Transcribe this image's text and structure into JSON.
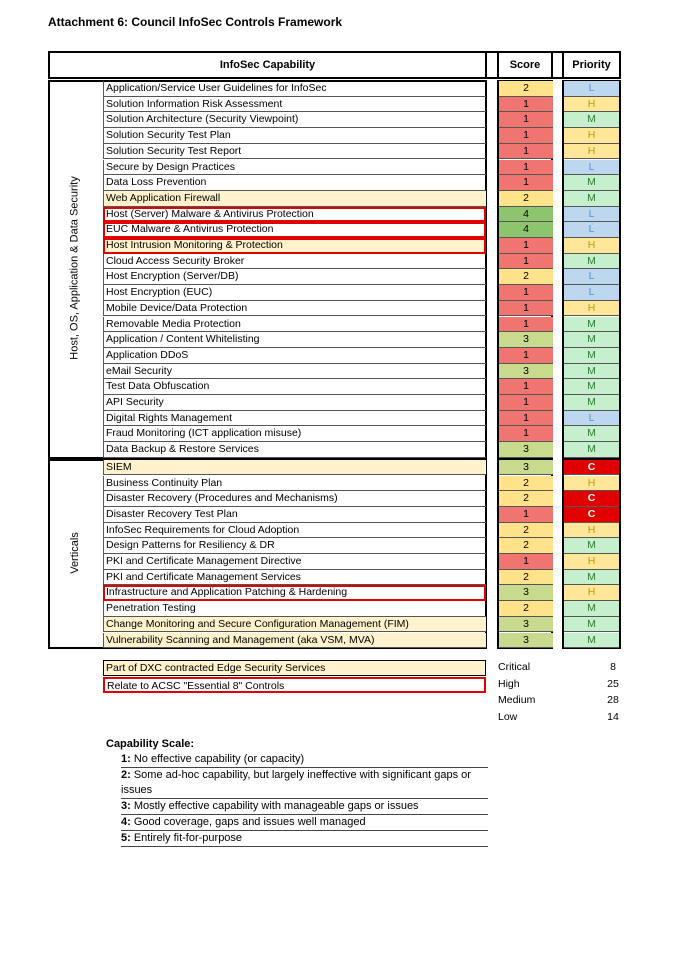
{
  "title": "Attachment 6:   Council InfoSec Controls Framework",
  "headers": {
    "capability": "InfoSec Capability",
    "score": "Score",
    "priority": "Priority"
  },
  "colors": {
    "score_1": "#f07470",
    "score_2": "#ffe28a",
    "score_3": "#c8da8e",
    "score_4": "#8dc56e",
    "prio_L_bg": "#bdd7ee",
    "prio_L_fg": "#5b8fd0",
    "prio_H_bg": "#ffe699",
    "prio_H_fg": "#c49a00",
    "prio_M_bg": "#c6efce",
    "prio_M_fg": "#2e7d32",
    "prio_C_bg": "#e00000",
    "prio_C_fg": "#ffffff",
    "edge_highlight": "#fff2cc",
    "essential8_border": "#e00000"
  },
  "sections": [
    {
      "label": "Host, OS, Application & Data Security",
      "rows": [
        {
          "name": "Application/Service User Guidelines for InfoSec",
          "score": "2",
          "priority": "L"
        },
        {
          "name": "Solution Information Risk Assessment",
          "score": "1",
          "priority": "H"
        },
        {
          "name": "Solution Architecture (Security Viewpoint)",
          "score": "1",
          "priority": "M"
        },
        {
          "name": "Solution Security Test Plan",
          "score": "1",
          "priority": "H"
        },
        {
          "name": "Solution Security Test Report",
          "score": "1",
          "priority": "H"
        },
        {
          "name": "Secure by Design Practices",
          "score": "1",
          "priority": "L"
        },
        {
          "name": "Data Loss Prevention",
          "score": "1",
          "priority": "M"
        },
        {
          "name": "Web Application Firewall",
          "score": "2",
          "priority": "M",
          "edge": true
        },
        {
          "name": "Host (Server) Malware & Antivirus Protection",
          "score": "4",
          "priority": "L",
          "e8": true
        },
        {
          "name": "EUC Malware & Antivirus Protection",
          "score": "4",
          "priority": "L",
          "e8": true
        },
        {
          "name": "Host Intrusion Monitoring & Protection",
          "score": "1",
          "priority": "H",
          "edge": true,
          "e8": true
        },
        {
          "name": "Cloud Access Security Broker",
          "score": "1",
          "priority": "M"
        },
        {
          "name": "Host Encryption (Server/DB)",
          "score": "2",
          "priority": "L"
        },
        {
          "name": "Host Encryption (EUC)",
          "score": "1",
          "priority": "L"
        },
        {
          "name": "Mobile Device/Data Protection",
          "score": "1",
          "priority": "H"
        },
        {
          "name": "Removable Media Protection",
          "score": "1",
          "priority": "M"
        },
        {
          "name": "Application / Content Whitelisting",
          "score": "3",
          "priority": "M"
        },
        {
          "name": "Application DDoS",
          "score": "1",
          "priority": "M"
        },
        {
          "name": "eMail Security",
          "score": "3",
          "priority": "M"
        },
        {
          "name": "Test Data Obfuscation",
          "score": "1",
          "priority": "M"
        },
        {
          "name": "API Security",
          "score": "1",
          "priority": "M"
        },
        {
          "name": "Digital Rights Management",
          "score": "1",
          "priority": "L"
        },
        {
          "name": "Fraud Monitoring (ICT application misuse)",
          "score": "1",
          "priority": "M"
        },
        {
          "name": "Data Backup & Restore Services",
          "score": "3",
          "priority": "M"
        }
      ]
    },
    {
      "label": "Verticals",
      "rows": [
        {
          "name": "SIEM",
          "score": "3",
          "priority": "C",
          "edge": true
        },
        {
          "name": "Business Continuity Plan",
          "score": "2",
          "priority": "H"
        },
        {
          "name": "Disaster Recovery (Procedures and Mechanisms)",
          "score": "2",
          "priority": "C"
        },
        {
          "name": "Disaster Recovery Test Plan",
          "score": "1",
          "priority": "C"
        },
        {
          "name": "InfoSec Requirements for Cloud Adoption",
          "score": "2",
          "priority": "H"
        },
        {
          "name": "Design Patterns for Resiliency & DR",
          "score": "2",
          "priority": "M"
        },
        {
          "name": "PKI and Certificate Management Directive",
          "score": "1",
          "priority": "H"
        },
        {
          "name": "PKI and Certificate Management Services",
          "score": "2",
          "priority": "M"
        },
        {
          "name": "Infrastructure and Application Patching & Hardening",
          "score": "3",
          "priority": "H",
          "e8": true
        },
        {
          "name": "Penetration Testing",
          "score": "2",
          "priority": "M"
        },
        {
          "name": "Change Monitoring and Secure Configuration Management (FIM)",
          "score": "3",
          "priority": "M",
          "edge": true
        },
        {
          "name": "Vulnerability Scanning and Management (aka VSM, MVA)",
          "score": "3",
          "priority": "M",
          "edge": true
        }
      ]
    }
  ],
  "legend": {
    "edge": "Part of DXC contracted Edge Security Services",
    "e8": "Relate to ACSC \"Essential 8\" Controls"
  },
  "counts": [
    {
      "label": "Critical",
      "value": "8"
    },
    {
      "label": "High",
      "value": "25"
    },
    {
      "label": "Medium",
      "value": "28"
    },
    {
      "label": "Low",
      "value": "14"
    }
  ],
  "scale": {
    "title": "Capability Scale:",
    "items": [
      {
        "num": "1:",
        "text": " No effective capability (or capacity)"
      },
      {
        "num": "2:",
        "text": " Some ad-hoc capability, but largely ineffective with significant gaps or issues"
      },
      {
        "num": "3:",
        "text": " Mostly effective capability with manageable gaps or issues"
      },
      {
        "num": "4:",
        "text": " Good coverage, gaps and issues well managed"
      },
      {
        "num": "5:",
        "text": " Entirely fit-for-purpose"
      }
    ]
  }
}
